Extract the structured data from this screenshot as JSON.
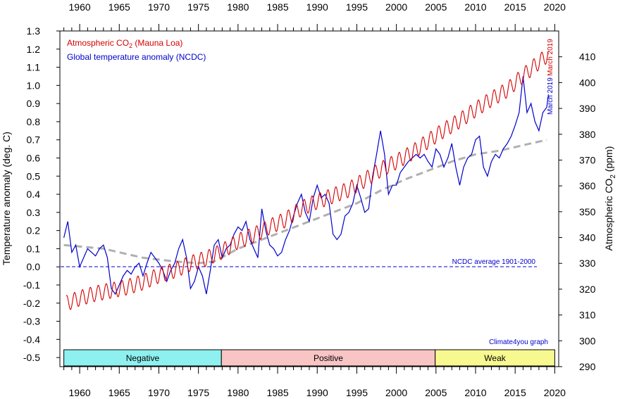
{
  "chart_data": {
    "type": "line",
    "x_ticks": [
      "1960",
      "1965",
      "1970",
      "1975",
      "1980",
      "1985",
      "1990",
      "1995",
      "2000",
      "2005",
      "2010",
      "2015",
      "2020"
    ],
    "xlim": [
      1957.5,
      2020.5
    ],
    "ylim_left": [
      -0.55,
      1.3
    ],
    "ylim_right": [
      290,
      420
    ],
    "left_ticks": [
      "-0.5",
      "-0.4",
      "-0.3",
      "-0.2",
      "-0.1",
      "0.0",
      "0.1",
      "0.2",
      "0.3",
      "0.4",
      "0.5",
      "0.6",
      "0.7",
      "0.8",
      "0.9",
      "1.0",
      "1.1",
      "1.2",
      "1.3"
    ],
    "right_ticks": [
      "290",
      "300",
      "310",
      "320",
      "330",
      "340",
      "350",
      "360",
      "370",
      "380",
      "390",
      "400",
      "410"
    ],
    "ylabel_left": "Temperature anomaly (deg. C)",
    "ylabel_right_main": "Atmospheric CO",
    "ylabel_right_sub": "2",
    "ylabel_right_unit": " (ppm)",
    "legend_co2_main": "Atmospheric CO",
    "legend_co2_sub": "2",
    "legend_co2_tail": " (Mauna Loa)",
    "legend_temp": "Global temperature anomaly (NCDC)",
    "zero_line_label": "NCDC average 1901-2000",
    "credit": "Climate4you graph",
    "end_label_temp": "March 2019",
    "end_label_co2": "March 2019",
    "colors": {
      "co2": "#d40000",
      "temp": "#0000cc",
      "trend": "#b0b0b0",
      "negative": "#8ff0f0",
      "positive": "#f8c4c4",
      "weak": "#f8f890"
    },
    "phases": [
      {
        "label": "Negative",
        "start": 1958.0,
        "end": 1977.9,
        "color": "#8ff0f0"
      },
      {
        "label": "Positive",
        "start": 1977.9,
        "end": 2004.9,
        "color": "#f8c4c4"
      },
      {
        "label": "Weak",
        "start": 2004.9,
        "end": 2020.0,
        "color": "#f8f890"
      }
    ],
    "series": [
      {
        "name": "Atmospheric CO2 (Mauna Loa)",
        "axis": "right",
        "seasonal_amplitude": 3,
        "x": [
          1958.3,
          1960,
          1962,
          1964,
          1966,
          1968,
          1970,
          1972,
          1974,
          1976,
          1978,
          1980,
          1982,
          1984,
          1986,
          1988,
          1990,
          1992,
          1994,
          1996,
          1998,
          2000,
          2002,
          2004,
          2006,
          2008,
          2010,
          2012,
          2014,
          2016,
          2018,
          2019.2
        ],
        "values": [
          314.5,
          316.5,
          318.3,
          319.5,
          320.8,
          322.7,
          325.4,
          327.3,
          330.0,
          331.9,
          334.7,
          338.6,
          341.0,
          344.2,
          346.9,
          351.3,
          354.0,
          356.2,
          358.6,
          362.3,
          366.3,
          369.4,
          372.9,
          377.4,
          381.6,
          385.3,
          389.6,
          393.6,
          397.2,
          402.7,
          407.9,
          411.0
        ]
      },
      {
        "name": "Global temperature anomaly (NCDC)",
        "axis": "left",
        "x": [
          1958.0,
          1958.5,
          1959.0,
          1959.5,
          1960.0,
          1960.5,
          1961.0,
          1961.5,
          1962.0,
          1962.5,
          1963.0,
          1963.5,
          1964.0,
          1964.5,
          1965.0,
          1965.5,
          1966.0,
          1966.5,
          1967.0,
          1967.5,
          1968.0,
          1968.5,
          1969.0,
          1969.5,
          1970.0,
          1970.5,
          1971.0,
          1971.5,
          1972.0,
          1972.5,
          1973.0,
          1973.5,
          1974.0,
          1974.5,
          1975.0,
          1975.5,
          1976.0,
          1976.5,
          1977.0,
          1977.5,
          1978.0,
          1978.5,
          1979.0,
          1979.5,
          1980.0,
          1980.5,
          1981.0,
          1981.5,
          1982.0,
          1982.5,
          1983.0,
          1983.5,
          1984.0,
          1984.5,
          1985.0,
          1985.5,
          1986.0,
          1986.5,
          1987.0,
          1987.5,
          1988.0,
          1988.5,
          1989.0,
          1989.5,
          1990.0,
          1990.5,
          1991.0,
          1991.5,
          1992.0,
          1992.5,
          1993.0,
          1993.5,
          1994.0,
          1994.5,
          1995.0,
          1995.5,
          1996.0,
          1996.5,
          1997.0,
          1997.5,
          1998.0,
          1998.5,
          1999.0,
          1999.5,
          2000.0,
          2000.5,
          2001.0,
          2001.5,
          2002.0,
          2002.5,
          2003.0,
          2003.5,
          2004.0,
          2004.5,
          2005.0,
          2005.5,
          2006.0,
          2006.5,
          2007.0,
          2007.5,
          2008.0,
          2008.5,
          2009.0,
          2009.5,
          2010.0,
          2010.5,
          2011.0,
          2011.5,
          2012.0,
          2012.5,
          2013.0,
          2013.5,
          2014.0,
          2014.5,
          2015.0,
          2015.5,
          2016.0,
          2016.5,
          2017.0,
          2017.5,
          2018.0,
          2018.5,
          2019.0,
          2019.2
        ],
        "values": [
          0.16,
          0.25,
          0.08,
          0.12,
          0.0,
          0.05,
          0.1,
          0.08,
          0.06,
          0.1,
          0.12,
          0.05,
          -0.12,
          -0.15,
          -0.1,
          -0.05,
          -0.02,
          -0.04,
          0.0,
          0.02,
          -0.05,
          0.02,
          0.08,
          0.05,
          0.02,
          -0.02,
          -0.08,
          -0.02,
          0.02,
          0.1,
          0.15,
          0.05,
          -0.12,
          -0.08,
          0.0,
          -0.05,
          -0.15,
          -0.02,
          0.12,
          0.15,
          0.05,
          0.1,
          0.12,
          0.18,
          0.22,
          0.2,
          0.25,
          0.15,
          0.1,
          0.05,
          0.32,
          0.2,
          0.12,
          0.1,
          0.06,
          0.08,
          0.15,
          0.2,
          0.28,
          0.35,
          0.4,
          0.3,
          0.25,
          0.38,
          0.45,
          0.38,
          0.4,
          0.35,
          0.18,
          0.15,
          0.18,
          0.28,
          0.3,
          0.35,
          0.45,
          0.38,
          0.3,
          0.32,
          0.5,
          0.62,
          0.75,
          0.62,
          0.4,
          0.45,
          0.45,
          0.52,
          0.55,
          0.58,
          0.6,
          0.62,
          0.6,
          0.62,
          0.58,
          0.55,
          0.65,
          0.62,
          0.55,
          0.6,
          0.68,
          0.55,
          0.45,
          0.55,
          0.6,
          0.62,
          0.7,
          0.72,
          0.55,
          0.5,
          0.58,
          0.62,
          0.6,
          0.65,
          0.68,
          0.72,
          0.78,
          0.85,
          1.05,
          0.85,
          0.9,
          0.8,
          0.75,
          0.85,
          0.88,
          0.95
        ]
      },
      {
        "name": "trend",
        "axis": "left",
        "dashed": true,
        "x": [
          1958,
          1963,
          1968,
          1972,
          1975,
          1977,
          1980,
          1983,
          1986,
          1989,
          1992,
          1995,
          1998,
          2001,
          2004,
          2007,
          2010,
          2013,
          2016,
          2019
        ],
        "values": [
          0.12,
          0.1,
          0.05,
          0.03,
          0.02,
          0.03,
          0.1,
          0.15,
          0.2,
          0.25,
          0.3,
          0.35,
          0.42,
          0.48,
          0.53,
          0.58,
          0.62,
          0.64,
          0.67,
          0.7
        ]
      }
    ]
  }
}
